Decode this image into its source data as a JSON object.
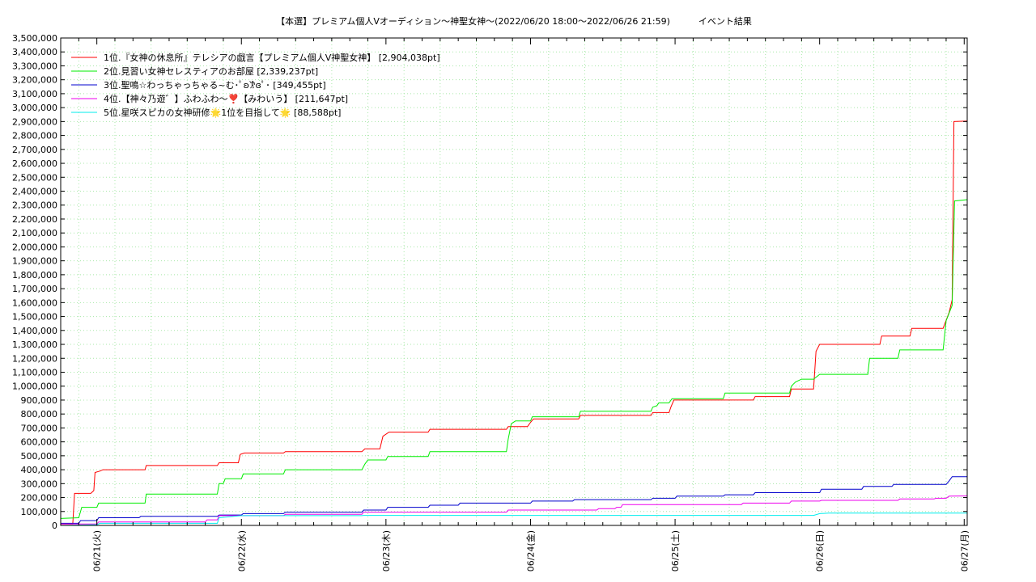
{
  "chart_data": {
    "type": "line",
    "title": "【本選】プレミアム個人Vオーディション〜神聖女神～(2022/06/20 18:00～2022/06/26 21:59)          イベント結果",
    "xlabel": "",
    "ylabel": "",
    "ylim": [
      0,
      3500000
    ],
    "y_ticks": [
      0,
      100000,
      200000,
      300000,
      400000,
      500000,
      600000,
      700000,
      800000,
      900000,
      1000000,
      1100000,
      1200000,
      1300000,
      1400000,
      1500000,
      1600000,
      1700000,
      1800000,
      1900000,
      2000000,
      2100000,
      2200000,
      2300000,
      2400000,
      2500000,
      2600000,
      2700000,
      2800000,
      2900000,
      3000000,
      3100000,
      3200000,
      3300000,
      3400000,
      3500000
    ],
    "y_tick_labels": [
      "0",
      "100,000",
      "200,000",
      "300,000",
      "400,000",
      "500,000",
      "600,000",
      "700,000",
      "800,000",
      "900,000",
      "1,000,000",
      "1,100,000",
      "1,200,000",
      "1,300,000",
      "1,400,000",
      "1,500,000",
      "1,600,000",
      "1,700,000",
      "1,800,000",
      "1,900,000",
      "2,000,000",
      "2,100,000",
      "2,200,000",
      "2,300,000",
      "2,400,000",
      "2,500,000",
      "2,600,000",
      "2,700,000",
      "2,800,000",
      "2,900,000",
      "3,000,000",
      "3,100,000",
      "3,200,000",
      "3,300,000",
      "3,400,000",
      "3,500,000"
    ],
    "x_unit": "hours since 2022/06/20 18:00",
    "xlim": [
      0,
      150.5
    ],
    "x_ticks": [
      6,
      30,
      54,
      78,
      102,
      126,
      150
    ],
    "x_tick_labels": [
      "06/21(火)",
      "06/22(水)",
      "06/23(木)",
      "06/24(金)",
      "06/25(土)",
      "06/26(日)",
      "06/27(月)"
    ],
    "grid": true,
    "legend_position": "top-left",
    "series": [
      {
        "name": "1位.『女神の休息所』テレシアの戯言【プレミアム個人V神聖女神】 [2,904,038pt]",
        "color": "#ff0000",
        "points": [
          [
            0,
            10000
          ],
          [
            2,
            10000
          ],
          [
            2.3,
            230000
          ],
          [
            5,
            230000
          ],
          [
            5.5,
            250000
          ],
          [
            5.7,
            380000
          ],
          [
            6.5,
            390000
          ],
          [
            7,
            400000
          ],
          [
            14,
            400000
          ],
          [
            14.2,
            430000
          ],
          [
            26,
            430000
          ],
          [
            26.3,
            450000
          ],
          [
            29.5,
            450000
          ],
          [
            29.8,
            510000
          ],
          [
            30.5,
            520000
          ],
          [
            37,
            520000
          ],
          [
            37.3,
            530000
          ],
          [
            50,
            530000
          ],
          [
            50.5,
            550000
          ],
          [
            53,
            550000
          ],
          [
            53.5,
            640000
          ],
          [
            54.5,
            670000
          ],
          [
            61,
            670000
          ],
          [
            61.3,
            690000
          ],
          [
            74,
            690000
          ],
          [
            74.3,
            710000
          ],
          [
            77.5,
            710000
          ],
          [
            78,
            740000
          ],
          [
            78.5,
            765000
          ],
          [
            86,
            765000
          ],
          [
            86.3,
            790000
          ],
          [
            98,
            790000
          ],
          [
            98.3,
            810000
          ],
          [
            101,
            810000
          ],
          [
            101.3,
            850000
          ],
          [
            101.8,
            900000
          ],
          [
            115,
            900000
          ],
          [
            115.3,
            925000
          ],
          [
            121,
            925000
          ],
          [
            121.3,
            980000
          ],
          [
            125,
            980000
          ],
          [
            125.4,
            1250000
          ],
          [
            126,
            1300000
          ],
          [
            136,
            1300000
          ],
          [
            136.3,
            1360000
          ],
          [
            141,
            1360000
          ],
          [
            141.3,
            1415000
          ],
          [
            146.5,
            1415000
          ],
          [
            147.5,
            1530000
          ],
          [
            148,
            1620000
          ],
          [
            148.3,
            2900000
          ],
          [
            150.5,
            2904038
          ]
        ]
      },
      {
        "name": "2位.見習い女神セレスティアのお部屋 [2,339,237pt]",
        "color": "#00ee00",
        "points": [
          [
            0,
            50000
          ],
          [
            3,
            55000
          ],
          [
            3.5,
            130000
          ],
          [
            6,
            130000
          ],
          [
            6.3,
            160000
          ],
          [
            14,
            160000
          ],
          [
            14.2,
            225000
          ],
          [
            26,
            225000
          ],
          [
            26.3,
            300000
          ],
          [
            27,
            300000
          ],
          [
            27.3,
            335000
          ],
          [
            30,
            335000
          ],
          [
            30.3,
            370000
          ],
          [
            37,
            370000
          ],
          [
            37.3,
            400000
          ],
          [
            50,
            400000
          ],
          [
            50.5,
            440000
          ],
          [
            51,
            470000
          ],
          [
            54,
            470000
          ],
          [
            54.3,
            495000
          ],
          [
            61,
            495000
          ],
          [
            61.3,
            530000
          ],
          [
            74,
            530000
          ],
          [
            74.3,
            620000
          ],
          [
            74.8,
            730000
          ],
          [
            75.5,
            750000
          ],
          [
            78,
            750000
          ],
          [
            78.3,
            780000
          ],
          [
            86,
            780000
          ],
          [
            86.3,
            820000
          ],
          [
            98,
            820000
          ],
          [
            98.3,
            850000
          ],
          [
            99,
            860000
          ],
          [
            99.3,
            880000
          ],
          [
            101,
            880000
          ],
          [
            101.5,
            910000
          ],
          [
            110,
            910000
          ],
          [
            110.3,
            950000
          ],
          [
            121,
            950000
          ],
          [
            121.3,
            1000000
          ],
          [
            122,
            1030000
          ],
          [
            123,
            1050000
          ],
          [
            125,
            1050000
          ],
          [
            126,
            1085000
          ],
          [
            134,
            1085000
          ],
          [
            134.3,
            1200000
          ],
          [
            139,
            1200000
          ],
          [
            139.3,
            1260000
          ],
          [
            146.5,
            1260000
          ],
          [
            147,
            1470000
          ],
          [
            148,
            1580000
          ],
          [
            148.4,
            2330000
          ],
          [
            150.5,
            2339237
          ]
        ]
      },
      {
        "name": "3位.聖鳴☆わっちゃっちゃる~む･ﾟʚ𐦂ɞﾟ･ [349,455pt]",
        "color": "#0000cc",
        "points": [
          [
            0,
            15000
          ],
          [
            3,
            15000
          ],
          [
            3.3,
            35000
          ],
          [
            6,
            35000
          ],
          [
            6.3,
            55000
          ],
          [
            13,
            55000
          ],
          [
            13.3,
            65000
          ],
          [
            26,
            65000
          ],
          [
            26.3,
            75000
          ],
          [
            30,
            75000
          ],
          [
            30.3,
            85000
          ],
          [
            37,
            85000
          ],
          [
            37.3,
            95000
          ],
          [
            50,
            95000
          ],
          [
            50.3,
            110000
          ],
          [
            54,
            110000
          ],
          [
            54.3,
            130000
          ],
          [
            61,
            130000
          ],
          [
            61.3,
            145000
          ],
          [
            66,
            145000
          ],
          [
            66.3,
            160000
          ],
          [
            78,
            160000
          ],
          [
            78.3,
            175000
          ],
          [
            85,
            175000
          ],
          [
            85.3,
            185000
          ],
          [
            98,
            185000
          ],
          [
            98.3,
            195000
          ],
          [
            102,
            195000
          ],
          [
            102.3,
            210000
          ],
          [
            110,
            210000
          ],
          [
            110.3,
            220000
          ],
          [
            115,
            220000
          ],
          [
            115.3,
            235000
          ],
          [
            126,
            235000
          ],
          [
            126.3,
            260000
          ],
          [
            133,
            260000
          ],
          [
            133.3,
            280000
          ],
          [
            138,
            280000
          ],
          [
            138.3,
            295000
          ],
          [
            147,
            295000
          ],
          [
            147.5,
            320000
          ],
          [
            148,
            350000
          ],
          [
            150.5,
            349455
          ]
        ]
      },
      {
        "name": "4位.【神々乃遊゛】ふわふわ〜❣️【みわいう】 [211,647pt]",
        "color": "#ee00ee",
        "points": [
          [
            0,
            10000
          ],
          [
            6,
            10000
          ],
          [
            6.3,
            25000
          ],
          [
            24,
            25000
          ],
          [
            24.3,
            40000
          ],
          [
            26,
            40000
          ],
          [
            26.3,
            70000
          ],
          [
            37,
            70000
          ],
          [
            37.3,
            80000
          ],
          [
            50,
            80000
          ],
          [
            50.3,
            95000
          ],
          [
            74,
            95000
          ],
          [
            74.3,
            110000
          ],
          [
            89,
            110000
          ],
          [
            89.3,
            120000
          ],
          [
            92,
            120000
          ],
          [
            92.3,
            130000
          ],
          [
            93,
            130000
          ],
          [
            93.3,
            150000
          ],
          [
            113,
            150000
          ],
          [
            113.3,
            160000
          ],
          [
            121,
            160000
          ],
          [
            121.3,
            175000
          ],
          [
            126,
            175000
          ],
          [
            126.3,
            180000
          ],
          [
            139,
            180000
          ],
          [
            139.3,
            190000
          ],
          [
            145,
            190000
          ],
          [
            145.3,
            195000
          ],
          [
            147,
            195000
          ],
          [
            147.5,
            210000
          ],
          [
            150.5,
            211647
          ]
        ]
      },
      {
        "name": "5位.星咲スピカの女神研修🌟1位を目指して🌟 [88,588pt]",
        "color": "#00eeee",
        "points": [
          [
            0,
            0
          ],
          [
            6,
            5000
          ],
          [
            6.5,
            15000
          ],
          [
            26,
            15000
          ],
          [
            26.3,
            55000
          ],
          [
            30,
            70000
          ],
          [
            37,
            70000
          ],
          [
            50,
            70000
          ],
          [
            50.3,
            72000
          ],
          [
            125,
            72000
          ],
          [
            126,
            85000
          ],
          [
            127.5,
            88000
          ],
          [
            150.5,
            88588
          ]
        ]
      }
    ]
  }
}
